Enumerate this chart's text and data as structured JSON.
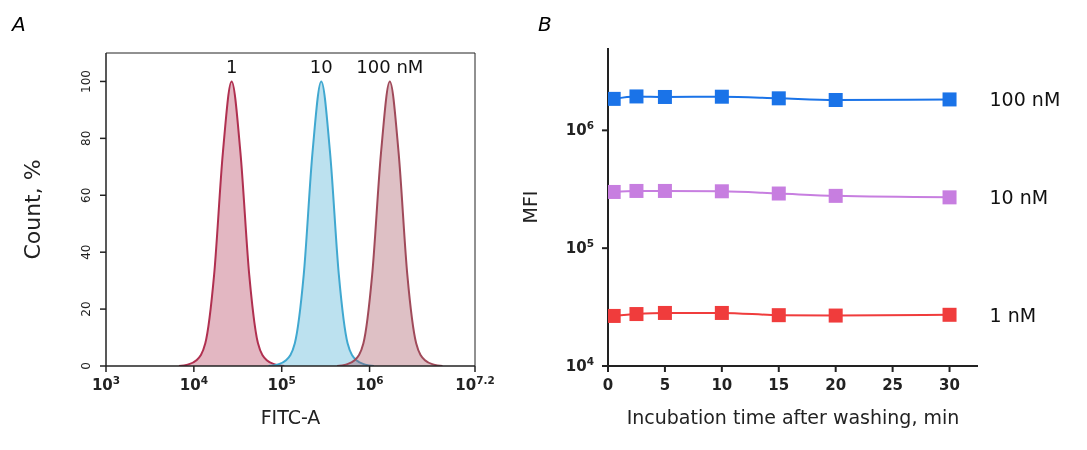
{
  "chart_data": [
    {
      "type": "area",
      "title": "A",
      "xlabel": "FITC-A",
      "ylabel": "Count, %",
      "log": "x",
      "xlim": [
        1000,
        15848932
      ],
      "xticks": [
        {
          "value": 1000,
          "label": "10$^{3}$"
        },
        {
          "value": 10000,
          "label": "10$^{4}$"
        },
        {
          "value": 100000,
          "label": "10$^{5}$"
        },
        {
          "value": 1000000,
          "label": "10$^{6}$"
        },
        {
          "value": 15848932,
          "label": "10$^{7.2}$"
        }
      ],
      "ylim": [
        0,
        110
      ],
      "yticks": [
        0,
        20,
        40,
        60,
        80,
        100
      ],
      "grid": false,
      "annotations": [
        {
          "text": "1",
          "x": 26900,
          "y": 100
        },
        {
          "text": "10",
          "x": 282000,
          "y": 100
        },
        {
          "text": "100 nM",
          "x": 1700000,
          "y": 100
        }
      ],
      "series": [
        {
          "color": "#b03050",
          "x": [
            6760,
            8510,
            10700,
            13500,
            17000,
            21400,
            26900,
            33900,
            42700,
            53700,
            67600,
            85100,
            107000
          ],
          "values": [
            0,
            0.5,
            2,
            8,
            32,
            75,
            100,
            75,
            32,
            8,
            2,
            0.5,
            0
          ]
        },
        {
          "color": "#40a8d0",
          "x": [
            70800,
            89100,
            112000,
            141000,
            178000,
            224000,
            282000,
            355000,
            447000,
            562000,
            708000,
            891000,
            1120000
          ],
          "values": [
            0,
            0.5,
            2,
            8,
            32,
            75,
            100,
            75,
            32,
            8,
            2,
            0.5,
            0
          ]
        },
        {
          "color": "#a04a5a",
          "x": [
            427000,
            537000,
            676000,
            851000,
            1070000,
            1350000,
            1700000,
            2140000,
            2690000,
            3390000,
            4270000,
            5370000,
            6760000
          ],
          "values": [
            0,
            0.5,
            2,
            8,
            32,
            75,
            100,
            75,
            32,
            8,
            2,
            0.5,
            0
          ]
        }
      ]
    },
    {
      "type": "line",
      "title": "B",
      "xlabel": "Incubation time after washing, min",
      "ylabel": "MFI",
      "log": "y",
      "xlim": [
        0,
        32.5
      ],
      "xticks": [
        0,
        5,
        10,
        15,
        20,
        25,
        30
      ],
      "ylim": [
        10000,
        5000000
      ],
      "yticks": [
        {
          "value": 10000,
          "label": "10$^{4}$"
        },
        {
          "value": 100000,
          "label": "10$^{5}$"
        },
        {
          "value": 1000000,
          "label": "10$^{6}$"
        }
      ],
      "grid": false,
      "marker": "square",
      "line_style": "solid",
      "x": [
        0.5,
        2.5,
        5,
        10,
        15,
        20,
        30
      ],
      "series": [
        {
          "name": "100 nM",
          "color": "#1a73e8",
          "values": [
            1850000,
            1940000,
            1920000,
            1930000,
            1870000,
            1810000,
            1830000
          ]
        },
        {
          "name": "10 nM",
          "color": "#c77ee0",
          "values": [
            300000,
            306000,
            306000,
            304000,
            291000,
            278000,
            270000
          ]
        },
        {
          "name": "1 nM",
          "color": "#f03c3c",
          "values": [
            26600,
            27600,
            28200,
            28200,
            27000,
            26800,
            27200
          ]
        }
      ]
    }
  ]
}
